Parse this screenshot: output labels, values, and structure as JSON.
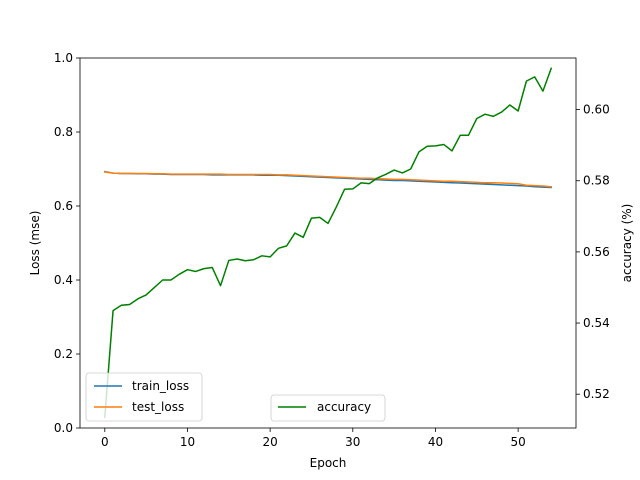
{
  "chart_data": {
    "type": "line",
    "xlabel": "Epoch",
    "ylabel_left": "Loss (mse)",
    "ylabel_right": "accuracy (%)",
    "xlim": [
      -3,
      57
    ],
    "ylim_left": [
      0,
      1.0
    ],
    "ylim_right": [
      0.5105,
      0.6145
    ],
    "x_ticks": [
      0,
      10,
      20,
      30,
      40,
      50
    ],
    "y_left_ticks": [
      "0.0",
      "0.2",
      "0.4",
      "0.6",
      "0.8",
      "1.0"
    ],
    "y_right_ticks": [
      "0.52",
      "0.54",
      "0.56",
      "0.58",
      "0.60"
    ],
    "x": [
      0,
      1,
      2,
      3,
      4,
      5,
      6,
      7,
      8,
      9,
      10,
      11,
      12,
      13,
      14,
      15,
      16,
      17,
      18,
      19,
      20,
      21,
      22,
      23,
      24,
      25,
      26,
      27,
      28,
      29,
      30,
      31,
      32,
      33,
      34,
      35,
      36,
      37,
      38,
      39,
      40,
      41,
      42,
      43,
      44,
      45,
      46,
      47,
      48,
      49,
      50,
      51,
      52,
      53,
      54
    ],
    "series": [
      {
        "name": "train_loss",
        "axis": "left",
        "color": "#1f77b4",
        "values": [
          0.693,
          0.689,
          0.688,
          0.688,
          0.687,
          0.687,
          0.686,
          0.686,
          0.685,
          0.685,
          0.685,
          0.685,
          0.685,
          0.684,
          0.684,
          0.684,
          0.684,
          0.684,
          0.684,
          0.683,
          0.683,
          0.683,
          0.682,
          0.681,
          0.68,
          0.679,
          0.678,
          0.677,
          0.676,
          0.675,
          0.674,
          0.673,
          0.672,
          0.671,
          0.67,
          0.669,
          0.669,
          0.668,
          0.667,
          0.666,
          0.665,
          0.664,
          0.663,
          0.662,
          0.661,
          0.66,
          0.659,
          0.658,
          0.657,
          0.656,
          0.655,
          0.654,
          0.652,
          0.651,
          0.65
        ]
      },
      {
        "name": "test_loss",
        "axis": "left",
        "color": "#ff7f0e",
        "values": [
          0.692,
          0.689,
          0.688,
          0.688,
          0.688,
          0.688,
          0.687,
          0.687,
          0.686,
          0.686,
          0.686,
          0.686,
          0.686,
          0.686,
          0.686,
          0.685,
          0.685,
          0.685,
          0.685,
          0.685,
          0.685,
          0.684,
          0.684,
          0.683,
          0.682,
          0.681,
          0.68,
          0.679,
          0.678,
          0.677,
          0.676,
          0.675,
          0.675,
          0.674,
          0.673,
          0.672,
          0.672,
          0.671,
          0.67,
          0.669,
          0.668,
          0.667,
          0.667,
          0.666,
          0.665,
          0.664,
          0.663,
          0.663,
          0.662,
          0.661,
          0.66,
          0.656,
          0.655,
          0.654,
          0.652
        ]
      },
      {
        "name": "accuracy",
        "axis": "right",
        "color": "#008000",
        "values": [
          0.5135,
          0.5435,
          0.545,
          0.5452,
          0.5468,
          0.5479,
          0.55,
          0.5521,
          0.5521,
          0.5537,
          0.555,
          0.5545,
          0.5553,
          0.5556,
          0.5505,
          0.5576,
          0.558,
          0.5575,
          0.5578,
          0.5589,
          0.5586,
          0.561,
          0.5617,
          0.5653,
          0.5641,
          0.5695,
          0.5697,
          0.568,
          0.5726,
          0.5776,
          0.5777,
          0.5794,
          0.5792,
          0.5808,
          0.5818,
          0.583,
          0.5822,
          0.5833,
          0.5881,
          0.5897,
          0.5898,
          0.5902,
          0.5884,
          0.5928,
          0.5928,
          0.5975,
          0.5987,
          0.5981,
          0.5993,
          0.6013,
          0.5996,
          0.608,
          0.6092,
          0.6052,
          0.6116
        ]
      }
    ],
    "legend_left": {
      "placement": "lower-left",
      "entries": [
        "train_loss",
        "test_loss"
      ]
    },
    "legend_right": {
      "placement": "lower-center",
      "entries": [
        "accuracy"
      ]
    },
    "grid": false
  }
}
